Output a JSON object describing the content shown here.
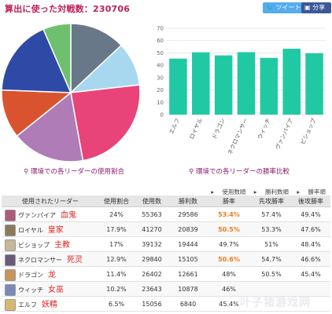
{
  "header": {
    "title": "算出に使った対戦数：230706"
  },
  "share": {
    "tweet_label": "ツイート",
    "share_label": "分享"
  },
  "pie": {
    "caption": "環境での各リーダーの使用割合",
    "slices": [
      {
        "leader": "ネメシス",
        "color": "#687888"
      },
      {
        "leader": "ウィッチ",
        "color": "#a8d8f0"
      },
      {
        "leader": "ヴァンパイア",
        "color": "#e8447a"
      },
      {
        "leader": "ビショップ",
        "color": "#b07cb8"
      },
      {
        "leader": "ドラゴン",
        "color": "#d9542e"
      },
      {
        "leader": "ロイヤル",
        "color": "#2e4aa6"
      },
      {
        "leader": "エルフ",
        "color": "#6ec06e"
      }
    ]
  },
  "chart_data": {
    "type": "bar",
    "title": "",
    "caption": "環境での各リーダーの勝率比較",
    "categories": [
      "エルフ",
      "ロイヤル",
      "ドラゴン",
      "ネクロマンサー",
      "ウィッチ",
      "ヴァンパイア",
      "ビショップ"
    ],
    "values": [
      45.4,
      50.5,
      48.0,
      50.6,
      46.0,
      53.4,
      49.7
    ],
    "ylim": [
      0,
      70
    ],
    "yticks": [
      0,
      10,
      20,
      30,
      40,
      50,
      60,
      70
    ],
    "grid": true,
    "color": "#20c9a3"
  },
  "legend_links": [
    "使用数順",
    "勝利数順",
    "勝率順"
  ],
  "table": {
    "headers": [
      "使用されたリーダー",
      "使用割合",
      "使用数",
      "勝利数",
      "勝率",
      "先攻勝率",
      "後攻勝率"
    ],
    "rows": [
      {
        "leader": "ヴァンパイア",
        "cn": "血鬼",
        "share": "24%",
        "uses": "55363",
        "wins": "29586",
        "winrate": "53.4%",
        "first": "57.4%",
        "second": "49.4%",
        "highlight": true,
        "avatar_color": "#b05a7a"
      },
      {
        "leader": "ロイヤル",
        "cn": "皇家",
        "share": "17.9%",
        "uses": "41270",
        "wins": "20839",
        "winrate": "50.5%",
        "first": "53.3%",
        "second": "47.6%",
        "highlight": true,
        "avatar_color": "#8a7a5a"
      },
      {
        "leader": "ビショップ",
        "cn": "主教",
        "share": "17%",
        "uses": "39132",
        "wins": "19444",
        "winrate": "49.7%",
        "first": "51%",
        "second": "48.4%",
        "highlight": false,
        "avatar_color": "#c8b89a"
      },
      {
        "leader": "ネクロマンサー",
        "cn": "死灵",
        "share": "12.9%",
        "uses": "29840",
        "wins": "15105",
        "winrate": "50.6%",
        "first": "54.7%",
        "second": "46.6%",
        "highlight": true,
        "avatar_color": "#6a5a7a"
      },
      {
        "leader": "ドラゴン",
        "cn": "龙",
        "share": "11.4%",
        "uses": "26402",
        "wins": "12661",
        "winrate": "48%",
        "first": "50.5%",
        "second": "45.4%",
        "highlight": false,
        "avatar_color": "#c8945a"
      },
      {
        "leader": "ウィッチ",
        "cn": "女巫",
        "share": "10.2%",
        "uses": "23643",
        "wins": "10878",
        "winrate": "46%",
        "first": "",
        "second": "",
        "highlight": false,
        "avatar_color": "#7a8ab8"
      },
      {
        "leader": "エルフ",
        "cn": "妖精",
        "share": "6.5%",
        "uses": "15056",
        "wins": "6840",
        "winrate": "45.4%",
        "first": "",
        "second": "",
        "highlight": false,
        "avatar_color": "#d8b870"
      }
    ]
  },
  "watermark": "叶子猪游戏网"
}
